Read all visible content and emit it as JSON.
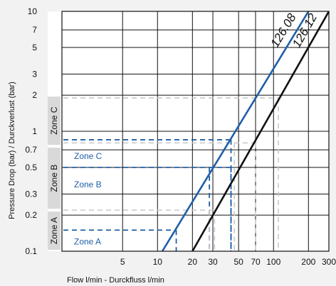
{
  "chart_data": {
    "type": "line",
    "xscale": "log",
    "yscale": "log",
    "xlabel": "Flow l/min - Durckfluss l/min",
    "ylabel": "Pressure Drop (bar) / Durckverlust (bar)",
    "xlim": [
      1.5,
      300
    ],
    "ylim": [
      0.1,
      10
    ],
    "x_ticks": [
      "5",
      "10",
      "20",
      "30",
      "50",
      "70",
      "100",
      "200",
      "300"
    ],
    "x_tick_values": [
      5,
      10,
      20,
      30,
      50,
      70,
      100,
      200,
      300
    ],
    "y_ticks": [
      "10",
      "7",
      "5",
      "3",
      "2",
      "1",
      "0.7",
      "0.5",
      "0.3",
      "0.2",
      "0.1"
    ],
    "y_tick_values": [
      10,
      7,
      5,
      3,
      2,
      1,
      0.7,
      0.5,
      0.3,
      0.2,
      0.1
    ],
    "grid": true,
    "series": [
      {
        "name": "126.08",
        "color": "#1f5fa8",
        "x": [
          11,
          200
        ],
        "y": [
          0.1,
          10
        ]
      },
      {
        "name": "126.12",
        "color": "#111111",
        "x": [
          20,
          300
        ],
        "y": [
          0.1,
          10
        ]
      }
    ],
    "zones": [
      {
        "name": "Zone A",
        "y_range": [
          0.1,
          0.22
        ]
      },
      {
        "name": "Zone B",
        "y_range": [
          0.22,
          0.75
        ]
      },
      {
        "name": "Zone C",
        "y_range": [
          0.75,
          2
        ]
      }
    ],
    "reference_lines": [
      {
        "zone": "Zone A",
        "pressure": 0.15,
        "flows": [
          14.5
        ],
        "style": "blue-dashed",
        "label": "Zone A"
      },
      {
        "zone": "Zone B",
        "pressure": 0.5,
        "flows": [
          28,
          43
        ],
        "style": "blue-dashed",
        "label": "Zone B"
      },
      {
        "zone": "Zone C",
        "pressure": 0.85,
        "flows": [
          43
        ],
        "style": "blue-dashed",
        "label": "Zone C"
      },
      {
        "zone": "Zone A",
        "pressure": 0.22,
        "flows": [
          28,
          31
        ],
        "style": "gray-dashed"
      },
      {
        "zone": "Zone C",
        "pressure": 0.8,
        "flows": [
          46,
          70
        ],
        "style": "gray-dashed"
      },
      {
        "zone": "Zone C",
        "pressure": 1.9,
        "flows": [
          110
        ],
        "style": "gray-dashed"
      }
    ]
  }
}
